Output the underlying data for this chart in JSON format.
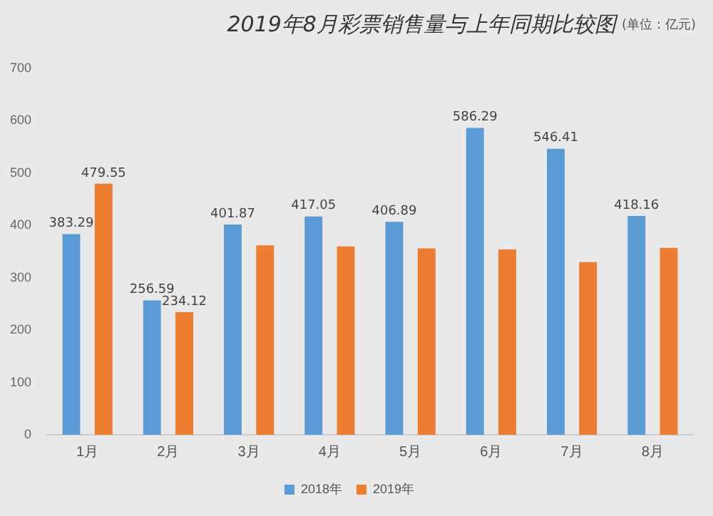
{
  "chart_data": {
    "type": "bar",
    "title": "2019年8月彩票销售量与上年同期比较图",
    "subtitle": "(单位：亿元)",
    "categories": [
      "1月",
      "2月",
      "3月",
      "4月",
      "5月",
      "6月",
      "7月",
      "8月"
    ],
    "series": [
      {
        "name": "2018年",
        "color": "#5b9bd5",
        "values": [
          383.29,
          256.59,
          401.87,
          417.05,
          406.89,
          586.29,
          546.41,
          418.16
        ],
        "value_labels": [
          "383.29",
          "256.59",
          "401.87",
          "417.05",
          "406.89",
          "586.29",
          "546.41",
          "418.16"
        ]
      },
      {
        "name": "2019年",
        "color": "#ed7d31",
        "values": [
          479.55,
          234.12,
          362,
          360,
          356,
          354,
          330,
          357
        ],
        "value_labels": [
          "479.55",
          "234.12",
          null,
          null,
          null,
          null,
          null,
          null
        ]
      }
    ],
    "ylim": [
      0,
      700
    ],
    "yticks": [
      0,
      100,
      200,
      300,
      400,
      500,
      600,
      700
    ],
    "grid": false,
    "legend": "bottom"
  }
}
